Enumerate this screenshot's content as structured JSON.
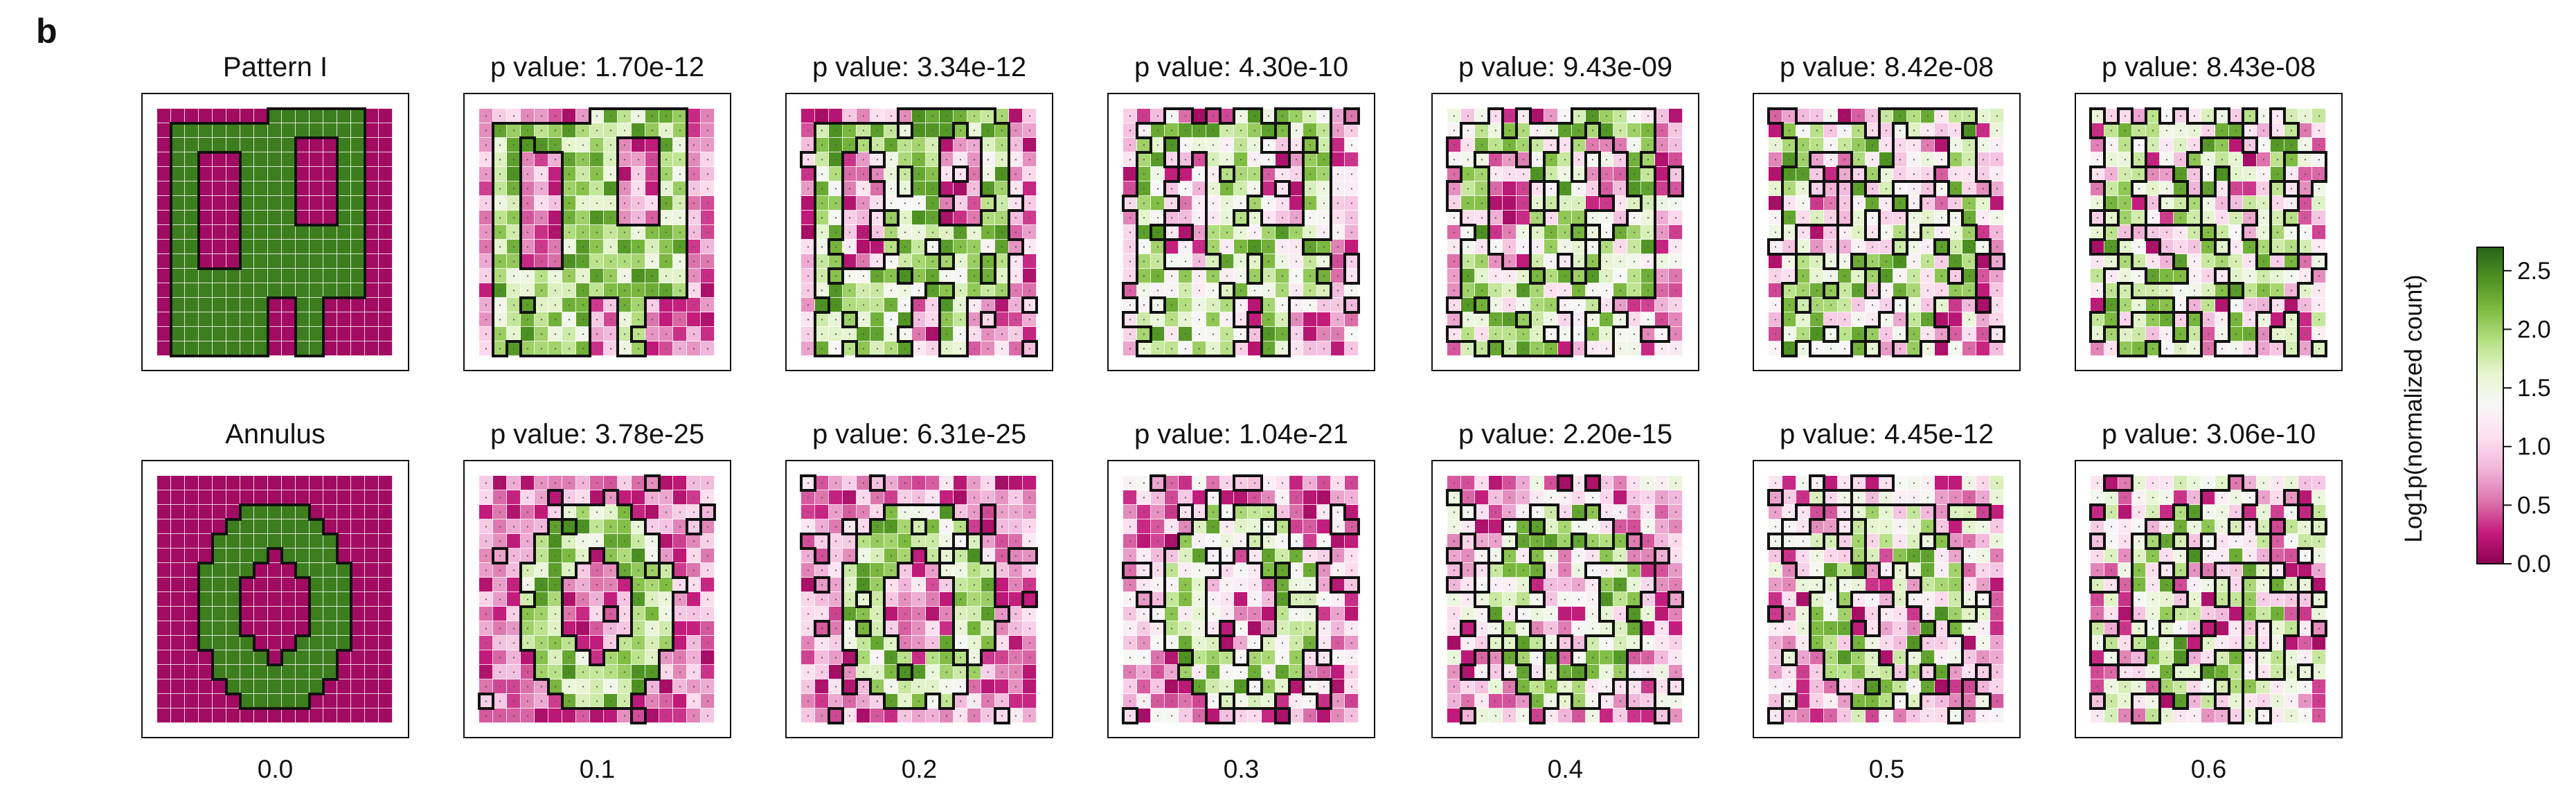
{
  "panel_label": "b",
  "chart_data": {
    "type": "heatmap",
    "rows": [
      {
        "pattern": "Pattern I",
        "titles": [
          "Pattern I",
          "p value: 1.70e-12",
          "p value: 3.34e-12",
          "p value: 4.30e-10",
          "p value: 9.43e-09",
          "p value: 8.42e-08",
          "p value: 8.43e-08"
        ]
      },
      {
        "pattern": "Annulus",
        "titles": [
          "Annulus",
          "p value: 3.78e-25",
          "p value: 6.31e-25",
          "p value: 1.04e-21",
          "p value: 2.20e-15",
          "p value: 4.45e-12",
          "p value: 3.06e-10"
        ]
      }
    ],
    "noise_levels": [
      "0.0",
      "0.1",
      "0.2",
      "0.3",
      "0.4",
      "0.5",
      "0.6"
    ],
    "colorbar": {
      "label": "Log1p(normalized count)",
      "ticks": [
        "0.0",
        "0.5",
        "1.0",
        "1.5",
        "2.0",
        "2.5"
      ],
      "range": [
        0,
        2.7
      ],
      "colormap": "PiYG",
      "low_color": "#8e0152",
      "mid_color": "#f7f7f7",
      "high_color": "#276419"
    },
    "grid": "none",
    "legend": "right"
  }
}
